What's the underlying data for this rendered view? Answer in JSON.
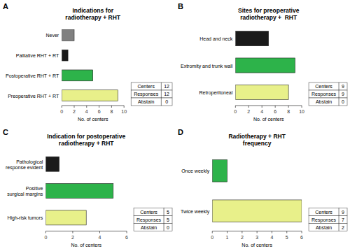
{
  "chart_data": [
    {
      "type": "bar",
      "orientation": "horizontal",
      "panel": "A",
      "title": "Indications for\nradiotherapy + RHT",
      "categories": [
        "Preoperative RHT + RT",
        "Postoperative RHT + RT",
        "Palliative RHT + RT",
        "Never"
      ],
      "values": [
        9,
        5,
        1,
        2
      ],
      "colors": [
        "#e8f08a",
        "#2db34a",
        "#1a1a1a",
        "#808080"
      ],
      "xlim": [
        0,
        10
      ],
      "xticks": [
        0,
        2,
        4,
        6,
        8,
        10
      ],
      "xlabel": "No. of centers",
      "grid": false,
      "table": [
        {
          "label": "Centers",
          "value": 12
        },
        {
          "label": "Responses",
          "value": 12
        },
        {
          "label": "Abstain",
          "value": 0
        }
      ]
    },
    {
      "type": "bar",
      "orientation": "horizontal",
      "panel": "B",
      "title": "Sites for preoperative\nradiotherapy +  RHT",
      "categories": [
        "Retroperitoneal",
        "Extromity and trunk wall",
        "Head and neck"
      ],
      "values": [
        8,
        9,
        5
      ],
      "colors": [
        "#e8f08a",
        "#2db34a",
        "#1a1a1a"
      ],
      "xlim": [
        0,
        10
      ],
      "xticks": [
        0,
        2,
        4,
        6,
        8,
        10
      ],
      "xlabel": "No. of centers",
      "grid": false,
      "table": [
        {
          "label": "Centers",
          "value": 9
        },
        {
          "label": "Responses",
          "value": 9
        },
        {
          "label": "Abstain",
          "value": 0
        }
      ]
    },
    {
      "type": "bar",
      "orientation": "horizontal",
      "panel": "C",
      "title": "Indication for postoperative\nradiotherapy + RHT",
      "categories": [
        "High-risk tumors",
        "Positive\nsurgical margins",
        "Pathological\nresponse evident"
      ],
      "values": [
        3,
        5,
        1
      ],
      "colors": [
        "#e8f08a",
        "#2db34a",
        "#1a1a1a"
      ],
      "xlim": [
        0,
        6
      ],
      "xticks": [
        0,
        2,
        4,
        6
      ],
      "xlabel": "No. of centers",
      "grid": false,
      "table": [
        {
          "label": "Centers",
          "value": 5
        },
        {
          "label": "Responses",
          "value": 5
        },
        {
          "label": "Abstain",
          "value": 0
        }
      ]
    },
    {
      "type": "bar",
      "orientation": "horizontal",
      "panel": "D",
      "title": "Radiotherapy + RHT\nfrequency",
      "categories": [
        "Twice weekly",
        "Once weekly"
      ],
      "values": [
        6,
        1
      ],
      "colors": [
        "#e8f08a",
        "#2db34a"
      ],
      "xlim": [
        0,
        6
      ],
      "xticks": [
        0,
        1,
        2,
        3,
        4,
        5,
        6
      ],
      "xlabel": "No. of centers",
      "grid": false,
      "table": [
        {
          "label": "Centers",
          "value": 9
        },
        {
          "label": "Responses",
          "value": 7
        },
        {
          "label": "Abstain",
          "value": 2
        }
      ]
    }
  ]
}
